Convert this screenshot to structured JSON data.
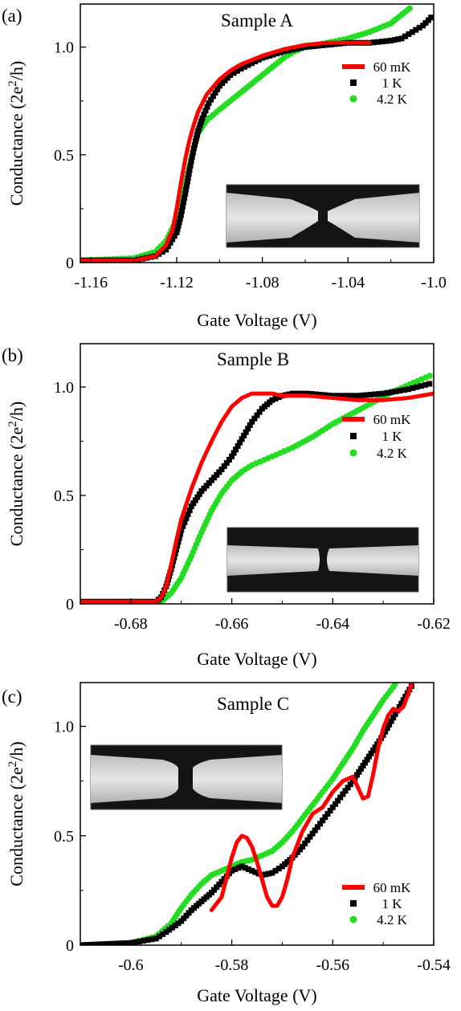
{
  "chart_data": [
    {
      "type": "line",
      "panel_label": "(a)",
      "title": "Sample A",
      "xlabel": "Gate Voltage (V)",
      "ylabel_main": "Conductance (2e",
      "ylabel_sup": "2",
      "ylabel_end": "/h)",
      "xlim": [
        -1.165,
        -1.0
      ],
      "ylim": [
        0,
        1.2
      ],
      "xticks": [
        -1.16,
        -1.12,
        -1.08,
        -1.04,
        -1.0
      ],
      "xtick_labels": [
        "-1.16",
        "-1.12",
        "-1.08",
        "-1.04",
        "-1.0"
      ],
      "yticks": [
        0,
        0.5,
        1.0
      ],
      "ytick_labels": [
        "0",
        "0.5",
        "1.0"
      ],
      "legend_position": "right",
      "grid": false,
      "inset": "device micrograph",
      "series": [
        {
          "name": "60 mK",
          "color": "#ff0000",
          "marker": "line",
          "x": [
            -1.165,
            -1.14,
            -1.13,
            -1.125,
            -1.122,
            -1.12,
            -1.118,
            -1.116,
            -1.114,
            -1.112,
            -1.11,
            -1.106,
            -1.1,
            -1.095,
            -1.09,
            -1.085,
            -1.08,
            -1.07,
            -1.06,
            -1.05,
            -1.04,
            -1.03
          ],
          "y": [
            0.01,
            0.01,
            0.03,
            0.08,
            0.15,
            0.25,
            0.37,
            0.48,
            0.57,
            0.64,
            0.7,
            0.78,
            0.85,
            0.89,
            0.92,
            0.94,
            0.96,
            0.99,
            1.01,
            1.02,
            1.02,
            1.02
          ]
        },
        {
          "name": "1 K",
          "color": "#000000",
          "marker": "square",
          "x": [
            -1.165,
            -1.14,
            -1.13,
            -1.125,
            -1.12,
            -1.118,
            -1.116,
            -1.114,
            -1.112,
            -1.11,
            -1.108,
            -1.105,
            -1.1,
            -1.095,
            -1.09,
            -1.08,
            -1.07,
            -1.06,
            -1.05,
            -1.04,
            -1.03,
            -1.02,
            -1.015,
            -1.01,
            -1.005,
            -1.0
          ],
          "y": [
            0.01,
            0.01,
            0.03,
            0.06,
            0.14,
            0.22,
            0.32,
            0.43,
            0.53,
            0.61,
            0.67,
            0.74,
            0.82,
            0.87,
            0.9,
            0.95,
            0.98,
            1.0,
            1.01,
            1.02,
            1.02,
            1.03,
            1.04,
            1.07,
            1.1,
            1.15
          ]
        },
        {
          "name": "4.2 K",
          "color": "#22dd22",
          "marker": "circle",
          "x": [
            -1.165,
            -1.14,
            -1.13,
            -1.125,
            -1.12,
            -1.118,
            -1.116,
            -1.114,
            -1.112,
            -1.11,
            -1.106,
            -1.1,
            -1.095,
            -1.09,
            -1.085,
            -1.08,
            -1.075,
            -1.07,
            -1.065,
            -1.06,
            -1.05,
            -1.04,
            -1.03,
            -1.02,
            -1.015,
            -1.01
          ],
          "y": [
            0.01,
            0.02,
            0.05,
            0.1,
            0.2,
            0.27,
            0.36,
            0.45,
            0.53,
            0.6,
            0.66,
            0.71,
            0.75,
            0.79,
            0.83,
            0.87,
            0.91,
            0.95,
            0.98,
            1.0,
            1.02,
            1.04,
            1.07,
            1.11,
            1.15,
            1.19
          ]
        }
      ]
    },
    {
      "type": "line",
      "panel_label": "(b)",
      "title": "Sample B",
      "xlabel": "Gate Voltage (V)",
      "ylabel_main": "Conductance (2e",
      "ylabel_sup": "2",
      "ylabel_end": "/h)",
      "xlim": [
        -0.69,
        -0.62
      ],
      "ylim": [
        0,
        1.2
      ],
      "xticks": [
        -0.68,
        -0.66,
        -0.64,
        -0.62
      ],
      "xtick_labels": [
        "-0.68",
        "-0.66",
        "-0.64",
        "-0.62"
      ],
      "yticks": [
        0,
        0.5,
        1.0
      ],
      "ytick_labels": [
        "0",
        "0.5",
        "1.0"
      ],
      "legend_position": "right",
      "grid": false,
      "inset": "device micrograph",
      "series": [
        {
          "name": "60 mK",
          "color": "#ff0000",
          "marker": "line",
          "x": [
            -0.69,
            -0.675,
            -0.674,
            -0.673,
            -0.672,
            -0.671,
            -0.67,
            -0.668,
            -0.666,
            -0.664,
            -0.662,
            -0.66,
            -0.658,
            -0.656,
            -0.654,
            -0.652,
            -0.65,
            -0.645,
            -0.64,
            -0.635,
            -0.63,
            -0.625,
            -0.62
          ],
          "y": [
            0.01,
            0.01,
            0.03,
            0.08,
            0.18,
            0.29,
            0.39,
            0.53,
            0.65,
            0.75,
            0.84,
            0.91,
            0.95,
            0.97,
            0.97,
            0.97,
            0.96,
            0.96,
            0.95,
            0.94,
            0.94,
            0.95,
            0.97
          ]
        },
        {
          "name": "1 K",
          "color": "#000000",
          "marker": "square",
          "x": [
            -0.69,
            -0.675,
            -0.674,
            -0.673,
            -0.672,
            -0.67,
            -0.668,
            -0.666,
            -0.664,
            -0.662,
            -0.66,
            -0.658,
            -0.656,
            -0.654,
            -0.652,
            -0.65,
            -0.648,
            -0.645,
            -0.64,
            -0.635,
            -0.63,
            -0.625,
            -0.62
          ],
          "y": [
            0.01,
            0.01,
            0.03,
            0.08,
            0.16,
            0.34,
            0.45,
            0.52,
            0.57,
            0.62,
            0.68,
            0.76,
            0.84,
            0.9,
            0.94,
            0.96,
            0.97,
            0.97,
            0.96,
            0.96,
            0.97,
            0.99,
            1.02
          ]
        },
        {
          "name": "4.2 K",
          "color": "#22dd22",
          "marker": "circle",
          "x": [
            -0.69,
            -0.674,
            -0.672,
            -0.67,
            -0.668,
            -0.666,
            -0.664,
            -0.662,
            -0.66,
            -0.658,
            -0.656,
            -0.652,
            -0.648,
            -0.644,
            -0.64,
            -0.636,
            -0.632,
            -0.628,
            -0.624,
            -0.62
          ],
          "y": [
            0.01,
            0.01,
            0.05,
            0.12,
            0.22,
            0.33,
            0.43,
            0.51,
            0.57,
            0.61,
            0.64,
            0.68,
            0.72,
            0.77,
            0.83,
            0.88,
            0.93,
            0.98,
            1.02,
            1.06
          ]
        }
      ]
    },
    {
      "type": "line",
      "panel_label": "(c)",
      "title": "Sample C",
      "xlabel": "Gate Voltage (V)",
      "ylabel_main": "Conductance (2e",
      "ylabel_sup": "2",
      "ylabel_end": "/h)",
      "xlim": [
        -0.61,
        -0.54
      ],
      "ylim": [
        0,
        1.2
      ],
      "xticks": [
        -0.6,
        -0.58,
        -0.56,
        -0.54
      ],
      "xtick_labels": [
        "-0.6",
        "-0.58",
        "-0.56",
        "-0.54"
      ],
      "yticks": [
        0,
        0.5,
        1.0
      ],
      "ytick_labels": [
        "0",
        "0.5",
        "1.0"
      ],
      "legend_position": "bottom-right",
      "grid": false,
      "inset": "device micrograph",
      "series": [
        {
          "name": "60 mK",
          "color": "#ff0000",
          "marker": "line",
          "x": [
            -0.584,
            -0.582,
            -0.58,
            -0.579,
            -0.578,
            -0.577,
            -0.576,
            -0.575,
            -0.574,
            -0.573,
            -0.572,
            -0.571,
            -0.57,
            -0.569,
            -0.568,
            -0.566,
            -0.564,
            -0.562,
            -0.56,
            -0.558,
            -0.556,
            -0.555,
            -0.554,
            -0.553,
            -0.552,
            -0.551,
            -0.55,
            -0.549,
            -0.548,
            -0.547,
            -0.546,
            -0.545,
            -0.544
          ],
          "y": [
            0.16,
            0.22,
            0.4,
            0.47,
            0.5,
            0.49,
            0.45,
            0.38,
            0.3,
            0.22,
            0.18,
            0.18,
            0.22,
            0.3,
            0.4,
            0.52,
            0.6,
            0.63,
            0.7,
            0.75,
            0.77,
            0.72,
            0.67,
            0.68,
            0.78,
            0.9,
            0.99,
            1.05,
            1.08,
            1.07,
            1.09,
            1.15,
            1.22
          ]
        },
        {
          "name": "1 K",
          "color": "#000000",
          "marker": "square",
          "x": [
            -0.61,
            -0.6,
            -0.595,
            -0.593,
            -0.59,
            -0.588,
            -0.586,
            -0.584,
            -0.582,
            -0.58,
            -0.578,
            -0.576,
            -0.574,
            -0.572,
            -0.57,
            -0.568,
            -0.566,
            -0.564,
            -0.562,
            -0.56,
            -0.558,
            -0.556,
            -0.554,
            -0.552,
            -0.55,
            -0.548,
            -0.546,
            -0.544
          ],
          "y": [
            0.0,
            0.01,
            0.03,
            0.06,
            0.11,
            0.16,
            0.2,
            0.24,
            0.29,
            0.34,
            0.36,
            0.34,
            0.32,
            0.33,
            0.36,
            0.4,
            0.45,
            0.51,
            0.57,
            0.63,
            0.69,
            0.75,
            0.82,
            0.89,
            0.96,
            1.04,
            1.12,
            1.2
          ]
        },
        {
          "name": "4.2 K",
          "color": "#22dd22",
          "marker": "circle",
          "x": [
            -0.61,
            -0.6,
            -0.595,
            -0.592,
            -0.59,
            -0.588,
            -0.586,
            -0.584,
            -0.582,
            -0.58,
            -0.578,
            -0.576,
            -0.574,
            -0.572,
            -0.57,
            -0.568,
            -0.566,
            -0.564,
            -0.562,
            -0.56,
            -0.558,
            -0.556,
            -0.554,
            -0.552,
            -0.55,
            -0.548,
            -0.547
          ],
          "y": [
            0.0,
            0.01,
            0.04,
            0.1,
            0.17,
            0.23,
            0.28,
            0.32,
            0.34,
            0.36,
            0.38,
            0.39,
            0.41,
            0.43,
            0.47,
            0.52,
            0.58,
            0.64,
            0.7,
            0.76,
            0.83,
            0.9,
            0.98,
            1.05,
            1.12,
            1.18,
            1.22
          ]
        }
      ]
    }
  ]
}
